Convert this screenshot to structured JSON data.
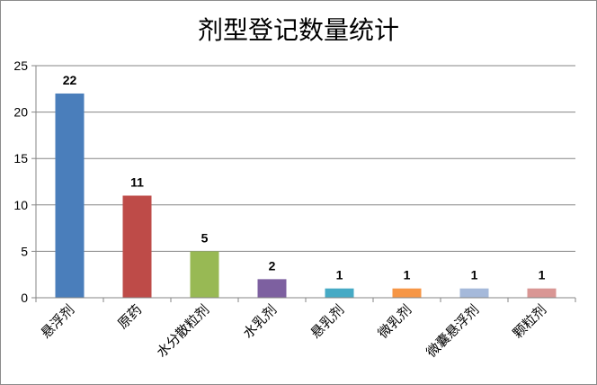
{
  "chart_data": {
    "type": "bar",
    "title": "剂型登记数量统计",
    "categories": [
      "悬浮剂",
      "原药",
      "水分散粒剂",
      "水乳剂",
      "悬乳剂",
      "微乳剂",
      "微囊悬浮剂",
      "颗粒剂"
    ],
    "values": [
      22,
      11,
      5,
      2,
      1,
      1,
      1,
      1
    ],
    "colors": [
      "#4a7ebb",
      "#be4b48",
      "#98b954",
      "#7d60a0",
      "#46aac5",
      "#f69646",
      "#a5b9da",
      "#d99694"
    ],
    "ylim": [
      0,
      25
    ],
    "yticks": [
      0,
      5,
      10,
      15,
      20,
      25
    ],
    "grid": true,
    "legend": "none",
    "data_labels": true
  }
}
